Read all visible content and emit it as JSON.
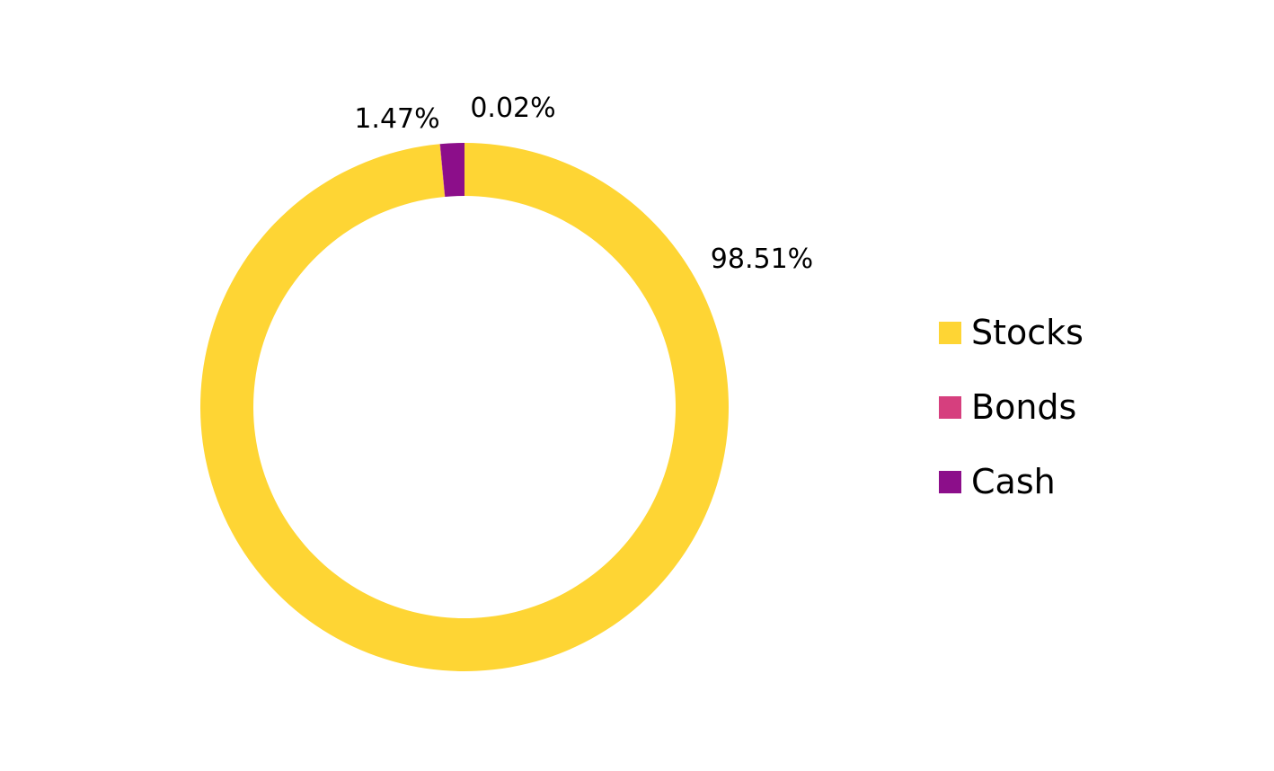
{
  "chart_data": {
    "type": "pie",
    "variant": "donut",
    "categories": [
      "Stocks",
      "Bonds",
      "Cash"
    ],
    "values": [
      98.51,
      0.02,
      1.47
    ],
    "unit": "%",
    "data_labels": [
      "98.51%",
      "0.02%",
      "1.47%"
    ],
    "colors": [
      "#FED534",
      "#D63F7E",
      "#8C0E8A"
    ],
    "legend_position": "right",
    "title": ""
  }
}
